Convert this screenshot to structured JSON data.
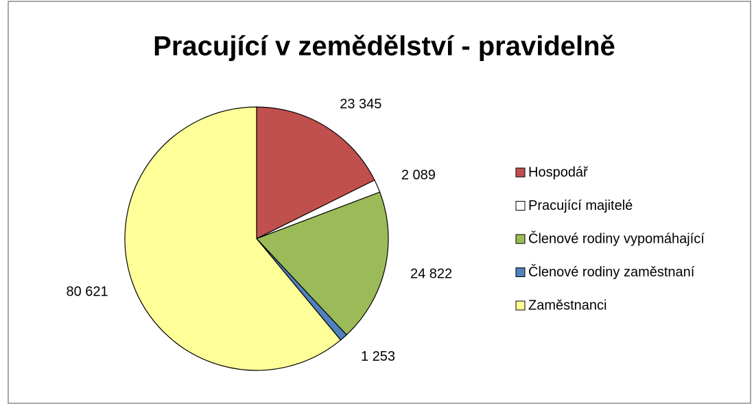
{
  "chart_data": {
    "type": "pie",
    "title": "Pracující v zemědělství - pravidelně",
    "categories": [
      "Hospodář",
      "Pracující majitelé",
      "Členové rodiny vypomáhající",
      "Členové rodiny zaměstnaní",
      "Zaměstnanci"
    ],
    "values": [
      23345,
      2089,
      24822,
      1253,
      80621
    ],
    "value_labels": [
      "23 345",
      "2 089",
      "24 822",
      "1 253",
      "80 621"
    ],
    "colors": [
      "#c0504d",
      "#ffffff",
      "#9bbb59",
      "#4f81bd",
      "#ffff99"
    ],
    "legend": "right"
  }
}
